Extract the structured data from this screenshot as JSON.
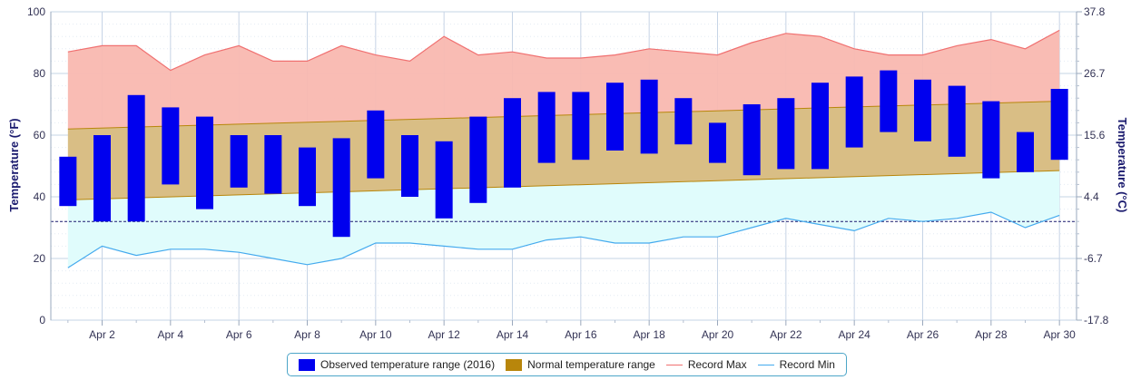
{
  "chart_data": {
    "type": "bar",
    "title": "",
    "ylabel_left": "Temperature (°F)",
    "ylabel_right": "Temperature (°C)",
    "ylim": [
      0,
      100
    ],
    "y_ticks_left": [
      "0",
      "20",
      "40",
      "60",
      "80",
      "100"
    ],
    "y_ticks_right": [
      "-17.8",
      "-6.7",
      "4.4",
      "15.6",
      "26.7",
      "37.8"
    ],
    "x_tick_labels": [
      "Apr 2",
      "Apr 4",
      "Apr 6",
      "Apr 8",
      "Apr 10",
      "Apr 12",
      "Apr 14",
      "Apr 16",
      "Apr 18",
      "Apr 20",
      "Apr 22",
      "Apr 24",
      "Apr 26",
      "Apr 28",
      "Apr 30"
    ],
    "days": [
      1,
      2,
      3,
      4,
      5,
      6,
      7,
      8,
      9,
      10,
      11,
      12,
      13,
      14,
      15,
      16,
      17,
      18,
      19,
      20,
      21,
      22,
      23,
      24,
      25,
      26,
      27,
      28,
      29,
      30
    ],
    "freezing_line": 32,
    "grid": true,
    "legend_position": "bottom",
    "series": [
      {
        "name": "Observed temperature range (2016)",
        "color": "#0000ee",
        "low": [
          37,
          32,
          32,
          44,
          36,
          43,
          41,
          37,
          27,
          46,
          40,
          33,
          38,
          43,
          51,
          52,
          55,
          54,
          57,
          51,
          47,
          49,
          49,
          56,
          61,
          58,
          53,
          46,
          48,
          52
        ],
        "high": [
          53,
          60,
          73,
          69,
          66,
          60,
          60,
          56,
          59,
          68,
          60,
          58,
          66,
          72,
          74,
          74,
          77,
          78,
          72,
          64,
          70,
          72,
          77,
          79,
          81,
          78,
          76,
          71,
          61,
          75
        ]
      },
      {
        "name": "Normal temperature range",
        "color": "#b8860b",
        "low_start": 39,
        "low_end": 48.5,
        "high_start": 62,
        "high_end": 71
      },
      {
        "name": "Record Max",
        "color": "#f07070",
        "values": [
          87,
          89,
          89,
          81,
          86,
          89,
          84,
          84,
          89,
          86,
          84,
          92,
          86,
          87,
          85,
          85,
          86,
          88,
          87,
          86,
          90,
          93,
          92,
          88,
          86,
          86,
          89,
          91,
          88,
          94
        ]
      },
      {
        "name": "Record Min",
        "color": "#44aaee",
        "values": [
          17,
          24,
          21,
          23,
          23,
          22,
          20,
          18,
          20,
          25,
          25,
          24,
          23,
          23,
          26,
          27,
          25,
          25,
          27,
          27,
          30,
          33,
          31,
          29,
          33,
          32,
          33,
          35,
          30,
          34
        ]
      }
    ]
  }
}
